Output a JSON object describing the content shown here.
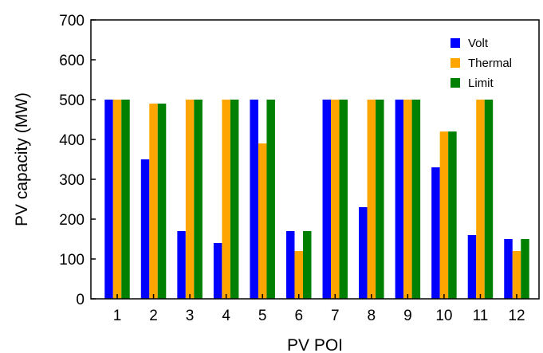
{
  "chart_data": {
    "type": "bar",
    "title": "",
    "xlabel": "PV POI",
    "ylabel": "PV capacity (MW)",
    "ylim": [
      0,
      700
    ],
    "yticks": [
      0,
      100,
      200,
      300,
      400,
      500,
      600,
      700
    ],
    "grid": false,
    "legend_position": "top-right",
    "categories": [
      "1",
      "2",
      "3",
      "4",
      "5",
      "6",
      "7",
      "8",
      "9",
      "10",
      "11",
      "12"
    ],
    "series": [
      {
        "name": "Volt",
        "color": "#0000ff",
        "values": [
          500,
          350,
          170,
          140,
          500,
          170,
          500,
          230,
          500,
          330,
          160,
          150
        ]
      },
      {
        "name": "Thermal",
        "color": "#ffa500",
        "values": [
          500,
          490,
          500,
          500,
          390,
          120,
          500,
          500,
          500,
          420,
          500,
          120
        ]
      },
      {
        "name": "Limit",
        "color": "#008000",
        "values": [
          500,
          490,
          500,
          500,
          500,
          170,
          500,
          500,
          500,
          420,
          500,
          150
        ]
      }
    ]
  }
}
